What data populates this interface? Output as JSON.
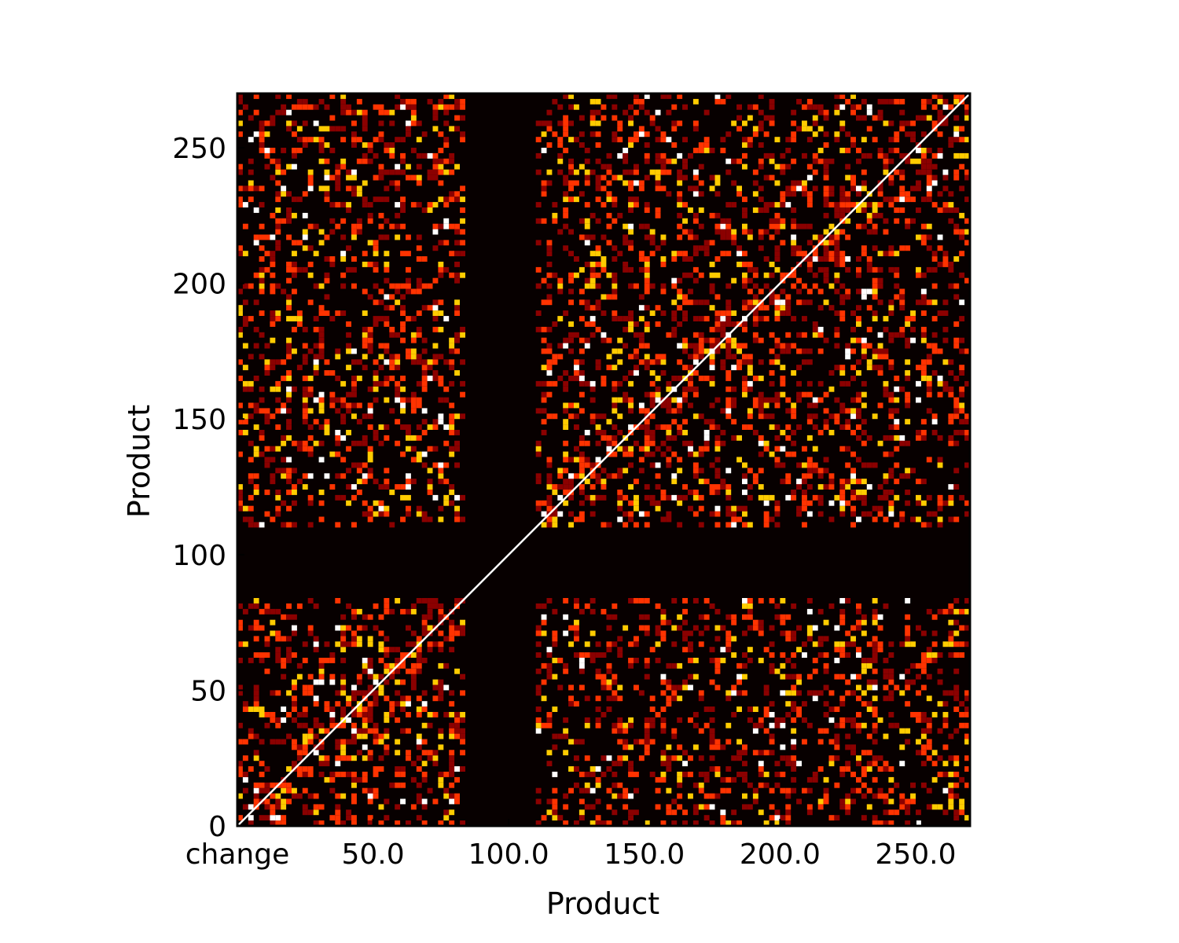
{
  "chart_data": {
    "type": "heatmap",
    "title": "",
    "xlabel": "Product",
    "ylabel": "Product",
    "xlim": [
      0,
      270
    ],
    "ylim": [
      0,
      270
    ],
    "x_ticks": [
      {
        "value": 0,
        "label": "change"
      },
      {
        "value": 50,
        "label": "50.0"
      },
      {
        "value": 100,
        "label": "100.0"
      },
      {
        "value": 150,
        "label": "150.0"
      },
      {
        "value": 200,
        "label": "200.0"
      },
      {
        "value": 250,
        "label": "250.0"
      }
    ],
    "y_ticks": [
      {
        "value": 0,
        "label": "0"
      },
      {
        "value": 50,
        "label": "50"
      },
      {
        "value": 100,
        "label": "100"
      },
      {
        "value": 150,
        "label": "150"
      },
      {
        "value": 200,
        "label": "200"
      },
      {
        "value": 250,
        "label": "250"
      }
    ],
    "colormap": "hot",
    "matrix_size": 270,
    "diagonal_value": 1.0,
    "dark_bands": [
      [
        84,
        100
      ],
      [
        96,
        108
      ]
    ],
    "grid": false,
    "colors": {
      "background": "#070000",
      "low": "#8b0000",
      "mid": "#ff3300",
      "high": "#ffcc00",
      "max": "#ffffff"
    }
  }
}
